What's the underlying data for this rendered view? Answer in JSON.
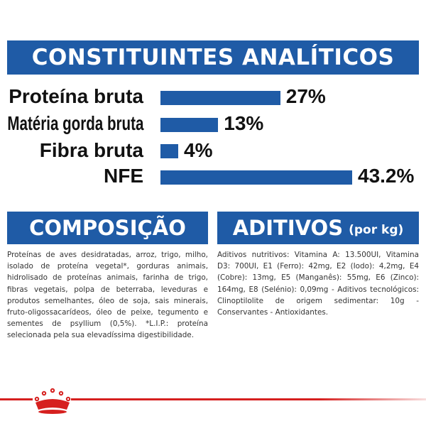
{
  "header": {
    "title": "CONSTITUINTES ANALÍTICOS"
  },
  "nutrients": [
    {
      "label": "Proteína bruta",
      "value_text": "27%",
      "value": 27
    },
    {
      "label": "Matéria gorda bruta",
      "value_text": "13%",
      "value": 13
    },
    {
      "label": "Fibra bruta",
      "value_text": "4%",
      "value": 4
    },
    {
      "label": "NFE",
      "value_text": "43.2%",
      "value": 43.2
    }
  ],
  "composition": {
    "title": "COMPOSIÇÃO",
    "text": "Proteínas de aves desidratadas, arroz, trigo, milho, isolado de proteína vegetal*, gorduras animais, hidrolisado de proteínas animais, farinha de trigo, fibras vegetais, polpa de beterraba, leveduras e produtos semelhantes, óleo de soja, sais minerais, fruto-oligossacarídeos, óleo de peixe, tegumento e sementes de psyllium (0,5%). *L.I.P.: proteína selecionada pela sua elevadíssima digestibilidade."
  },
  "additives": {
    "title": "ADITIVOS",
    "unit": "(por kg)",
    "text": "Aditivos nutritivos: Vitamina A: 13.500UI, Vitamina D3: 700UI, E1 (Ferro): 42mg, E2 (Iodo): 4,2mg, E4 (Cobre): 13mg, E5 (Manganês): 55mg, E6 (Zinco): 164mg, E8 (Selénio): 0,09mg - Aditivos tecnológicos: Clinoptilolite de origem sedimentar: 10g - Conservantes - Antioxidantes."
  },
  "colors": {
    "brand_blue": "#1f5ba6",
    "brand_red": "#d6201f"
  },
  "icons": {
    "logo": "royal-canin-crown-icon"
  }
}
